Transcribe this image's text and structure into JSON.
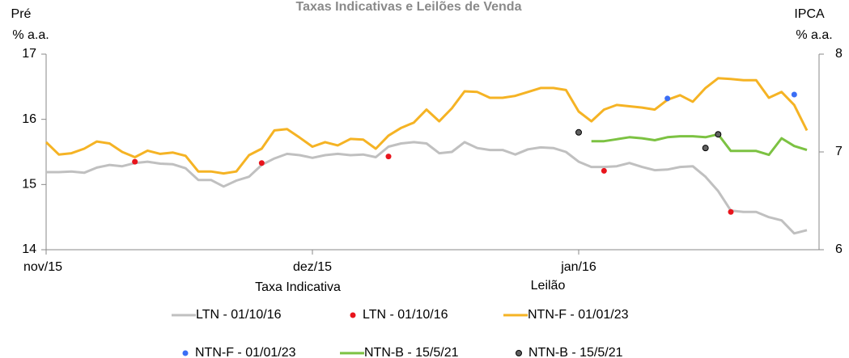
{
  "chart_data": {
    "type": "line",
    "title": "Taxas Indicativas e Leilões de Venda",
    "y_label": [
      "Pré",
      "% a.a."
    ],
    "y2_label": [
      "IPCA",
      "% a.a."
    ],
    "x_labels": [
      "Taxa Indicativa",
      "Leilão"
    ],
    "categories": [
      "nov/15",
      null,
      null,
      null,
      null,
      null,
      null,
      null,
      null,
      null,
      null,
      null,
      null,
      null,
      null,
      null,
      null,
      null,
      null,
      null,
      null,
      "dez/15",
      null,
      null,
      null,
      null,
      null,
      null,
      null,
      null,
      null,
      null,
      null,
      null,
      null,
      null,
      null,
      null,
      null,
      null,
      null,
      null,
      "jan/16",
      null,
      null,
      null,
      null,
      null,
      null,
      null,
      null,
      null,
      null,
      null,
      null,
      null,
      null,
      null,
      null,
      null,
      null
    ],
    "ylim": [
      14,
      17
    ],
    "yticks": [
      14,
      15,
      16,
      17
    ],
    "y2lim": [
      6,
      8
    ],
    "y2ticks": [
      6,
      7,
      8
    ],
    "series": [
      {
        "name": "LTN - 01/10/16",
        "type": "line",
        "color": "#c0c0c0",
        "values": [
          15.19,
          15.19,
          15.2,
          15.18,
          15.26,
          15.3,
          15.28,
          15.33,
          15.35,
          15.32,
          15.31,
          15.25,
          15.07,
          15.07,
          14.97,
          15.06,
          15.12,
          15.3,
          15.4,
          15.47,
          15.45,
          15.41,
          15.45,
          15.47,
          15.45,
          15.46,
          15.42,
          15.58,
          15.63,
          15.65,
          15.63,
          15.48,
          15.5,
          15.65,
          15.56,
          15.53,
          15.53,
          15.46,
          15.54,
          15.57,
          15.56,
          15.5,
          15.35,
          15.27,
          15.27,
          15.28,
          15.33,
          15.27,
          15.22,
          15.23,
          15.27,
          15.28,
          15.12,
          14.9,
          14.6,
          14.58,
          14.58,
          14.5,
          14.45,
          14.25,
          14.3
        ]
      },
      {
        "name": "LTN - 01/10/16",
        "type": "scatter",
        "color": "#e8141c",
        "x": [
          7,
          17,
          27,
          44,
          54
        ],
        "values": [
          15.35,
          15.33,
          15.43,
          15.21,
          14.58
        ]
      },
      {
        "name": "NTN-F - 01/01/23",
        "type": "line",
        "color": "#f5b324",
        "values": [
          15.65,
          15.46,
          15.48,
          15.55,
          15.66,
          15.63,
          15.5,
          15.42,
          15.52,
          15.47,
          15.49,
          15.44,
          15.2,
          15.2,
          15.17,
          15.2,
          15.45,
          15.55,
          15.83,
          15.85,
          15.72,
          15.58,
          15.65,
          15.6,
          15.7,
          15.69,
          15.55,
          15.75,
          15.87,
          15.95,
          16.15,
          15.97,
          16.17,
          16.43,
          16.42,
          16.33,
          16.33,
          16.36,
          16.42,
          16.48,
          16.48,
          16.45,
          16.12,
          15.97,
          16.15,
          16.22,
          16.2,
          16.18,
          16.15,
          16.3,
          16.37,
          16.27,
          16.48,
          16.63,
          16.62,
          16.6,
          16.6,
          16.33,
          16.42,
          16.22,
          15.83
        ]
      },
      {
        "name": "NTN-F - 01/01/23",
        "type": "scatter",
        "color": "#3b6ef5",
        "x": [
          49,
          59
        ],
        "values": [
          16.32,
          16.38
        ]
      },
      {
        "name": "NTN-B - 15/5/21",
        "type": "line",
        "color": "#7cc242",
        "axis": "y2",
        "values": [
          null,
          null,
          null,
          null,
          null,
          null,
          null,
          null,
          null,
          null,
          null,
          null,
          null,
          null,
          null,
          null,
          null,
          null,
          null,
          null,
          null,
          null,
          null,
          null,
          null,
          null,
          null,
          null,
          null,
          null,
          null,
          null,
          null,
          null,
          null,
          null,
          null,
          null,
          null,
          null,
          null,
          null,
          null,
          7.11,
          7.11,
          7.13,
          7.15,
          7.14,
          7.12,
          7.15,
          7.16,
          7.16,
          7.15,
          7.18,
          7.01,
          7.01,
          7.01,
          6.97,
          7.14,
          7.06,
          7.02
        ]
      },
      {
        "name": "NTN-B - 15/5/21",
        "type": "scatter",
        "color": "#606060",
        "axis": "y2",
        "x": [
          42,
          52,
          53
        ],
        "values": [
          7.2,
          7.04,
          7.18
        ]
      }
    ]
  }
}
